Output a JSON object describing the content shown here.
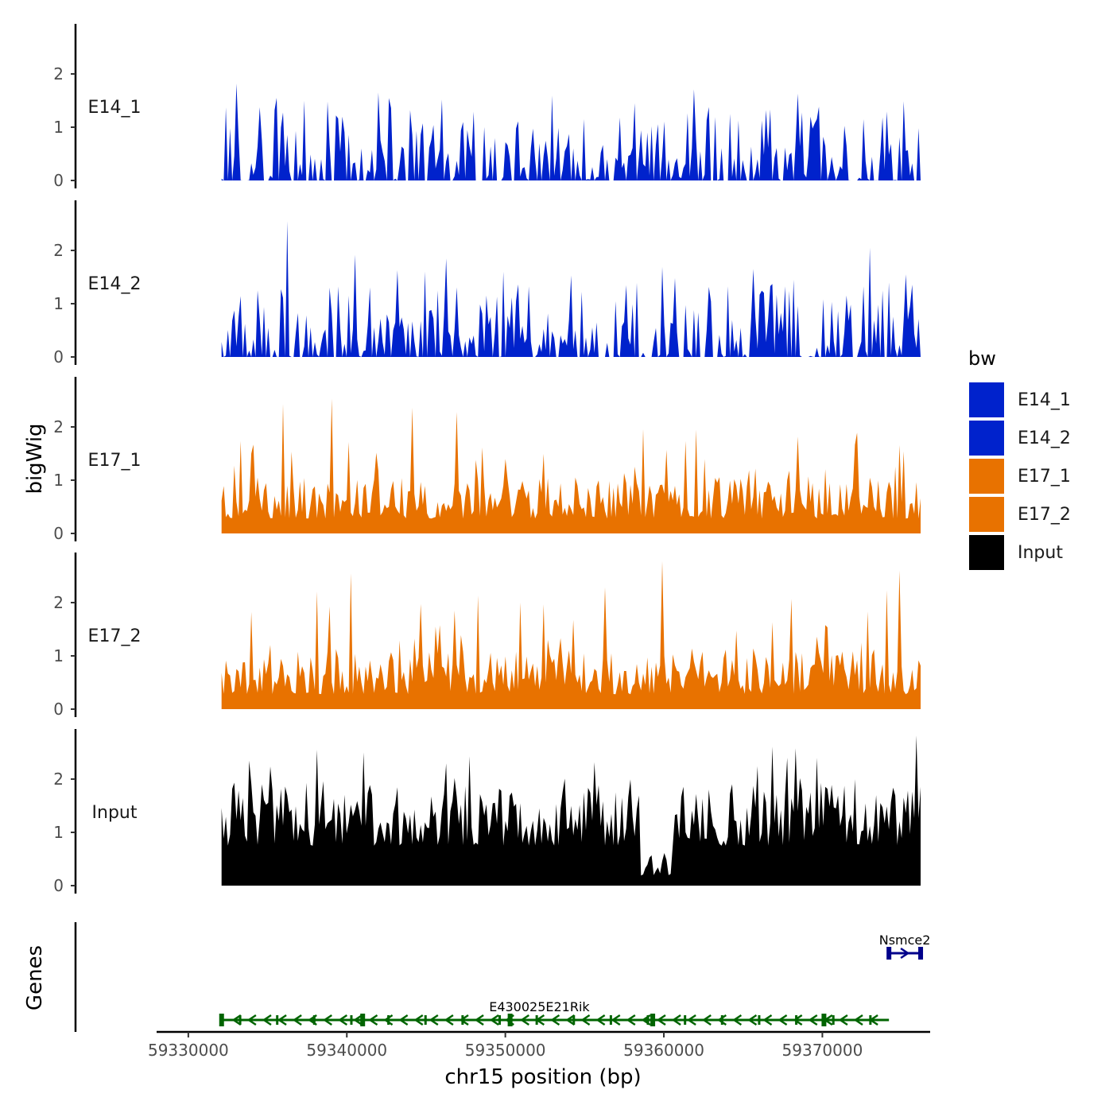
{
  "chart_data": {
    "type": "area",
    "chromosome": "chr15",
    "xlabel": "chr15 position (bp)",
    "ylabel_tracks": "bigWig",
    "ylabel_genes": "Genes",
    "xlim": [
      59328000,
      59376800
    ],
    "x_ticks": [
      59330000,
      59340000,
      59350000,
      59360000,
      59370000
    ],
    "x_tick_labels": [
      "59330000",
      "59340000",
      "59350000",
      "59360000",
      "59370000"
    ],
    "data_range": [
      59332100,
      59376200
    ],
    "y_ticks": [
      0,
      1,
      2
    ],
    "y_tick_labels": [
      "0",
      "1",
      "2"
    ],
    "ylim": [
      0,
      2.9
    ],
    "legend": {
      "title": "bw",
      "position": "right",
      "entries": [
        {
          "label": "E14_1",
          "color": "#0022CC"
        },
        {
          "label": "E14_2",
          "color": "#0022CC"
        },
        {
          "label": "E17_1",
          "color": "#E87200"
        },
        {
          "label": "E17_2",
          "color": "#E87200"
        },
        {
          "label": "Input",
          "color": "#000000"
        }
      ]
    },
    "tracks": [
      {
        "name": "E14_1",
        "color": "#0022CC",
        "peaks": [
          {
            "x": 59333000,
            "y": 1.82
          },
          {
            "x": 59338800,
            "y": 1.48
          },
          {
            "x": 59346000,
            "y": 1.52
          },
          {
            "x": 59354900,
            "y": 1.15
          },
          {
            "x": 59357200,
            "y": 1.18
          },
          {
            "x": 59358200,
            "y": 1.45
          },
          {
            "x": 59361900,
            "y": 1.71
          },
          {
            "x": 59368400,
            "y": 1.63
          },
          {
            "x": 59376000,
            "y": 0.98
          }
        ]
      },
      {
        "name": "E14_2",
        "color": "#0022CC",
        "peaks": [
          {
            "x": 59336200,
            "y": 2.55
          },
          {
            "x": 59340500,
            "y": 1.92
          },
          {
            "x": 59346200,
            "y": 1.85
          },
          {
            "x": 59354200,
            "y": 1.53
          },
          {
            "x": 59360700,
            "y": 1.48
          },
          {
            "x": 59365700,
            "y": 1.65
          },
          {
            "x": 59368200,
            "y": 1.45
          },
          {
            "x": 59373000,
            "y": 2.05
          },
          {
            "x": 59375200,
            "y": 1.55
          }
        ]
      },
      {
        "name": "E17_1",
        "color": "#E87200",
        "peaks": [
          {
            "x": 59336000,
            "y": 2.43
          },
          {
            "x": 59339000,
            "y": 2.53
          },
          {
            "x": 59344100,
            "y": 2.36
          },
          {
            "x": 59347000,
            "y": 2.28
          },
          {
            "x": 59362100,
            "y": 1.95
          },
          {
            "x": 59368400,
            "y": 1.82
          }
        ]
      },
      {
        "name": "E17_2",
        "color": "#E87200",
        "peaks": [
          {
            "x": 59340300,
            "y": 2.55
          },
          {
            "x": 59346800,
            "y": 1.85
          },
          {
            "x": 59351000,
            "y": 2.0
          },
          {
            "x": 59359900,
            "y": 2.78
          },
          {
            "x": 59368100,
            "y": 2.07
          },
          {
            "x": 59374900,
            "y": 2.6
          }
        ]
      },
      {
        "name": "Input",
        "color": "#000000",
        "peaks": [
          {
            "x": 59338100,
            "y": 2.55
          },
          {
            "x": 59341000,
            "y": 2.5
          },
          {
            "x": 59347800,
            "y": 2.43
          },
          {
            "x": 59366800,
            "y": 2.61
          },
          {
            "x": 59369700,
            "y": 2.4
          },
          {
            "x": 59375900,
            "y": 2.82
          }
        ]
      }
    ],
    "genes": [
      {
        "name": "E430025E21Rik",
        "start": 59332100,
        "end": 59374200,
        "strand": "-",
        "color": "#006400",
        "exons": [
          59332100,
          59341000,
          59350300,
          59359300,
          59370100
        ]
      },
      {
        "name": "Nsmce2",
        "start": 59374200,
        "end": 59376200,
        "strand": "+",
        "color": "#00008B",
        "exons": [
          59374200,
          59376200
        ]
      }
    ]
  }
}
